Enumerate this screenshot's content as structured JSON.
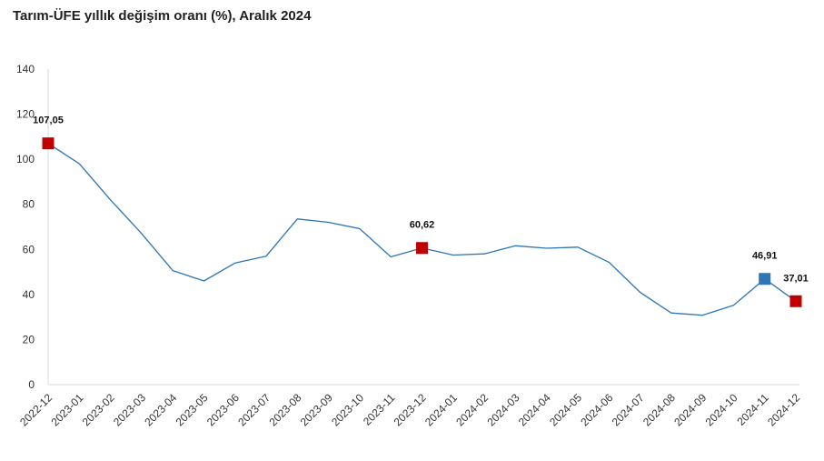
{
  "title": "Tarım-ÜFE yıllık değişim oranı (%), Aralık 2024",
  "chart_data": {
    "type": "line",
    "title": "Tarım-ÜFE yıllık değişim oranı (%), Aralık 2024",
    "xlabel": "",
    "ylabel": "",
    "ylim": [
      0,
      140
    ],
    "y_ticks": [
      "0",
      "20",
      "40",
      "60",
      "80",
      "100",
      "120",
      "140"
    ],
    "grid": false,
    "categories": [
      "2022-12",
      "2023-01",
      "2023-02",
      "2023-03",
      "2023-04",
      "2023-05",
      "2023-06",
      "2023-07",
      "2023-08",
      "2023-09",
      "2023-10",
      "2023-11",
      "2023-12",
      "2024-01",
      "2024-02",
      "2024-03",
      "2024-04",
      "2024-05",
      "2024-06",
      "2024-07",
      "2024-08",
      "2024-09",
      "2024-10",
      "2024-11",
      "2024-12"
    ],
    "values": [
      107.05,
      98.0,
      82.0,
      67.0,
      50.6,
      46.0,
      54.0,
      57.0,
      73.5,
      72.0,
      69.2,
      56.7,
      60.62,
      57.5,
      58.0,
      61.6,
      60.5,
      61.0,
      54.3,
      41.0,
      31.8,
      30.8,
      35.2,
      46.91,
      37.01
    ],
    "line_color": "#2e75b6",
    "markers": [
      {
        "index": 0,
        "label": "107,05",
        "color": "#c00000"
      },
      {
        "index": 12,
        "label": "60,62",
        "color": "#c00000"
      },
      {
        "index": 23,
        "label": "46,91",
        "color": "#2e75b6"
      },
      {
        "index": 24,
        "label": "37,01",
        "color": "#c00000"
      }
    ]
  }
}
